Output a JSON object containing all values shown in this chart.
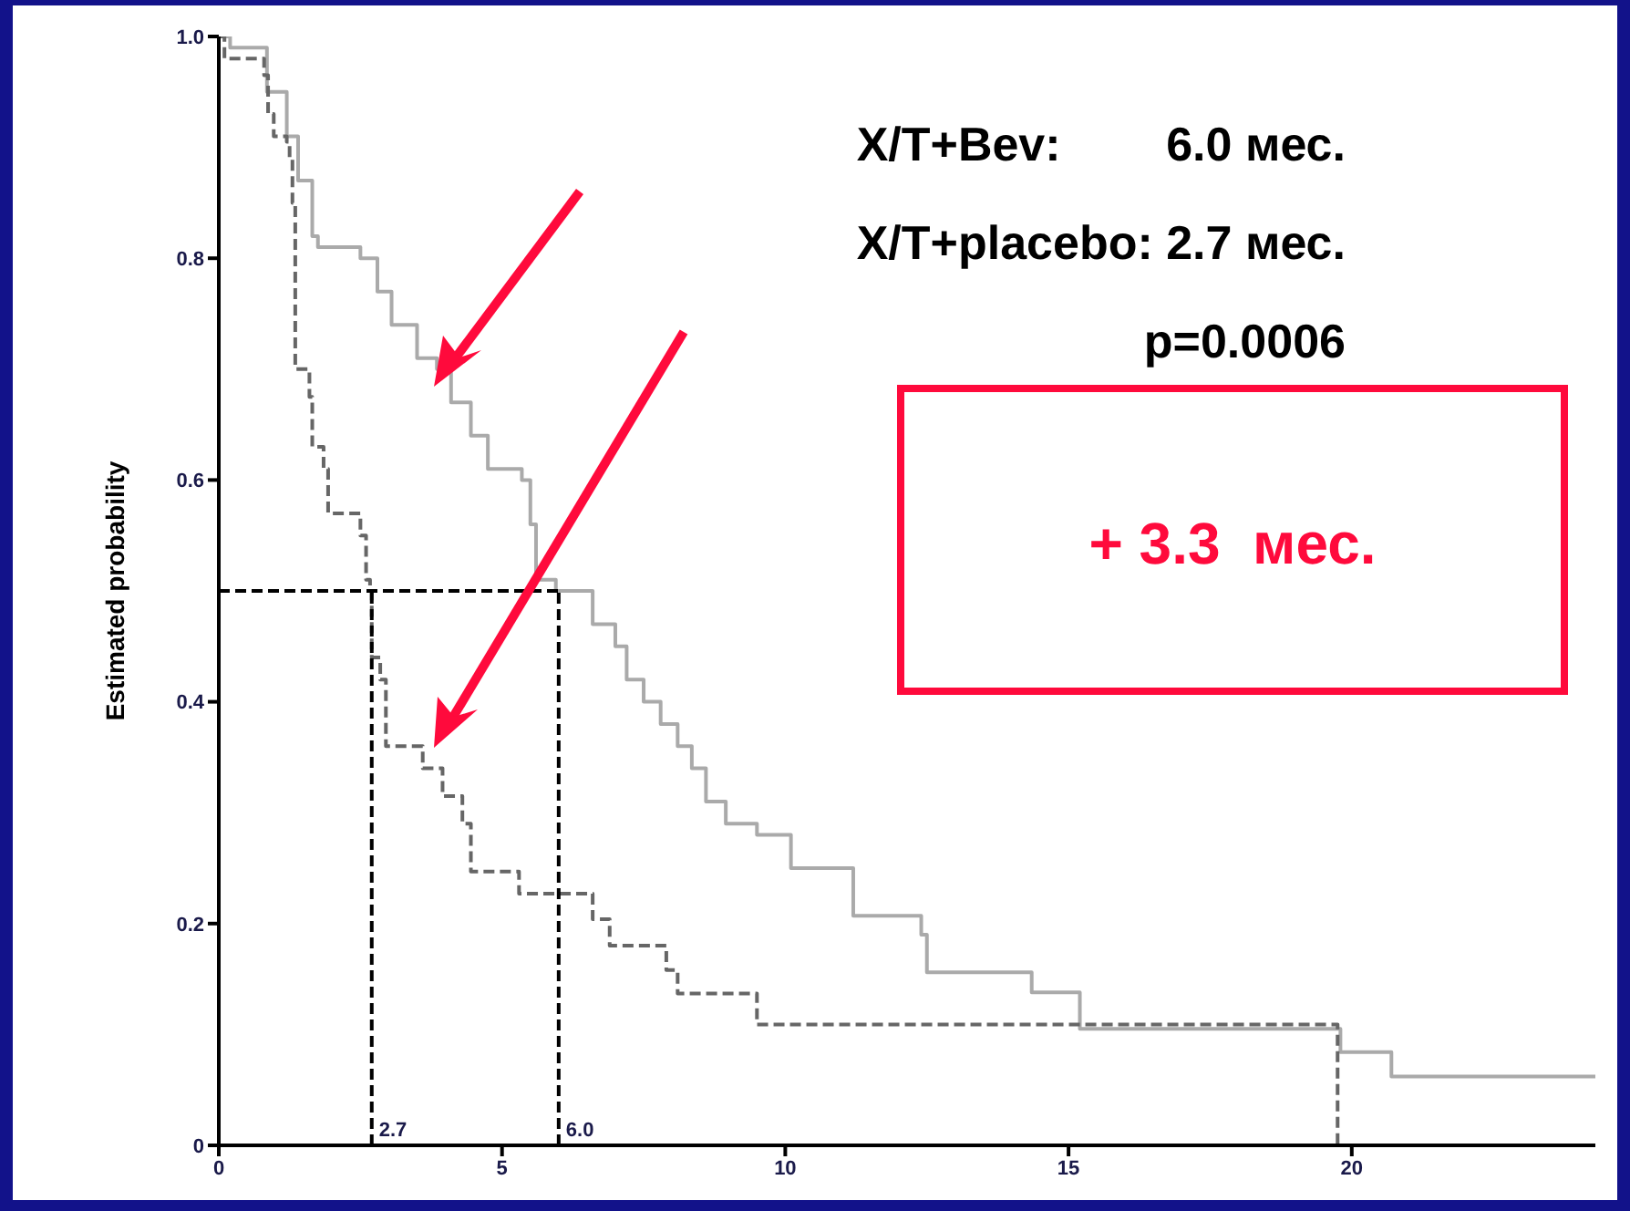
{
  "chart_data": {
    "type": "step",
    "ylabel": "Estimated probability",
    "xlim": [
      0,
      24.3
    ],
    "xticks": [
      0,
      5,
      10,
      15,
      20
    ],
    "ylim": [
      0,
      1
    ],
    "yticks": [
      0,
      0.2,
      0.4,
      0.6,
      0.8,
      {
        "value": 1,
        "label": "1.0"
      }
    ],
    "marker": "none",
    "series": [
      {
        "color": "#aaaaaa",
        "line_style": "solid",
        "x": [
          0,
          0.2,
          0.85,
          1.2,
          1.4,
          1.65,
          1.75,
          2.5,
          2.8,
          3.05,
          3.5,
          3.85,
          4.1,
          4.45,
          4.75,
          5.35,
          5.5,
          5.6,
          5.95,
          6.6,
          7.0,
          7.2,
          7.5,
          7.8,
          8.1,
          8.35,
          8.6,
          8.95,
          9.5,
          10.1,
          11.2,
          12.4,
          12.5,
          14.35,
          15.2,
          19.8,
          20.7,
          24.3
        ],
        "values": [
          1.0,
          0.99,
          0.95,
          0.91,
          0.87,
          0.82,
          0.81,
          0.8,
          0.77,
          0.74,
          0.71,
          0.7,
          0.67,
          0.64,
          0.61,
          0.6,
          0.56,
          0.51,
          0.5,
          0.47,
          0.45,
          0.42,
          0.4,
          0.38,
          0.36,
          0.34,
          0.31,
          0.29,
          0.28,
          0.25,
          0.207,
          0.19,
          0.156,
          0.138,
          0.105,
          0.084,
          0.062,
          0.062
        ]
      },
      {
        "color": "#666666",
        "line_style": "dashed",
        "x": [
          0,
          0.1,
          0.8,
          0.87,
          0.97,
          1.2,
          1.25,
          1.3,
          1.35,
          1.6,
          1.65,
          1.85,
          1.93,
          2.5,
          2.6,
          2.67,
          2.7,
          2.85,
          2.95,
          3.6,
          3.95,
          4.3,
          4.45,
          5.3,
          6.6,
          6.9,
          7.9,
          8.1,
          9.5,
          19.75,
          19.8
        ],
        "values": [
          1.0,
          0.98,
          0.965,
          0.93,
          0.91,
          0.905,
          0.89,
          0.85,
          0.7,
          0.675,
          0.63,
          0.61,
          0.57,
          0.55,
          0.51,
          0.5,
          0.44,
          0.42,
          0.36,
          0.34,
          0.315,
          0.29,
          0.247,
          0.227,
          0.204,
          0.18,
          0.158,
          0.137,
          0.109,
          0.0,
          0.0
        ]
      },
      {
        "type": "line",
        "color": "#000000",
        "line_style": "dashed",
        "x": [
          0,
          6.0
        ],
        "values": [
          0.5,
          0.5
        ]
      },
      {
        "type": "line",
        "color": "#000000",
        "line_style": "dashed",
        "x": [
          2.7,
          2.7
        ],
        "values": [
          0,
          0.5
        ]
      },
      {
        "type": "line",
        "color": "#000000",
        "line_style": "dashed",
        "x": [
          6.0,
          6.0
        ],
        "values": [
          0,
          0.5
        ]
      }
    ],
    "annotations": [
      "X/T+Bev:        6.0 мес.",
      "X/T+placebo: 2.7 мес.",
      "p=0.0006",
      "+ 3.3  мес.",
      {
        "text": "2.7",
        "x": 2.7,
        "y": 0
      },
      {
        "text": "6.0",
        "x": 6.0,
        "y": 0
      }
    ]
  }
}
